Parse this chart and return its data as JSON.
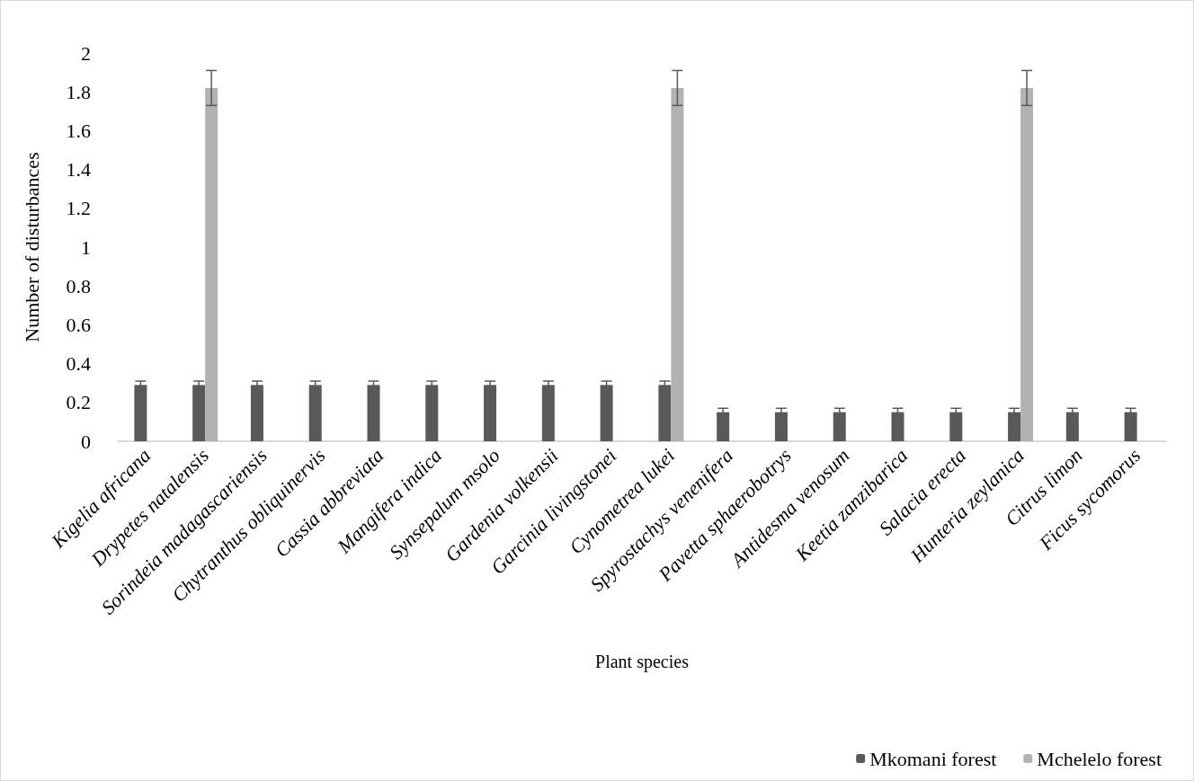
{
  "chart_data": {
    "type": "bar",
    "xlabel": "Plant species",
    "ylabel": "Number of disturbances",
    "categories": [
      "Kigelia africana",
      "Drypetes natalensis",
      "Sorindeia madagascariensis",
      "Chytranthus obliquinervis",
      "Cassia abbreviata",
      "Mangifera indica",
      "Synsepalum msolo",
      "Gardenia volkensii",
      "Garcinia livingstonei",
      "Cynometrea lukei",
      "Spyrostachys venenifera",
      "Pavetta sphaerobotrys",
      "Antidesma venosum",
      "Keetia zanzibarica",
      "Salacia erecta",
      "Hunteria zeylanica",
      "Citrus limon",
      "Ficus sycomorus"
    ],
    "series": [
      {
        "name": "Mkomani forest",
        "color": "#595959",
        "values": [
          0.29,
          0.29,
          0.29,
          0.29,
          0.29,
          0.29,
          0.29,
          0.29,
          0.29,
          0.29,
          0.15,
          0.15,
          0.15,
          0.15,
          0.15,
          0.15,
          0.15,
          0.15
        ],
        "errors": [
          0.02,
          0.02,
          0.02,
          0.02,
          0.02,
          0.02,
          0.02,
          0.02,
          0.02,
          0.02,
          0.02,
          0.02,
          0.02,
          0.02,
          0.02,
          0.02,
          0.02,
          0.02
        ]
      },
      {
        "name": "Mchelelo forest",
        "color": "#b2b2b2",
        "values": [
          null,
          1.82,
          null,
          null,
          null,
          null,
          null,
          null,
          null,
          1.82,
          null,
          null,
          null,
          null,
          null,
          1.82,
          null,
          null
        ],
        "errors": [
          null,
          0.09,
          null,
          null,
          null,
          null,
          null,
          null,
          null,
          0.09,
          null,
          null,
          null,
          null,
          null,
          0.09,
          null,
          null
        ]
      }
    ],
    "ylim": [
      0,
      2
    ],
    "yticks": [
      0,
      0.2,
      0.4,
      0.6,
      0.8,
      1,
      1.2,
      1.4,
      1.6,
      1.8,
      2
    ],
    "grid": false,
    "legend": "bottom right"
  }
}
